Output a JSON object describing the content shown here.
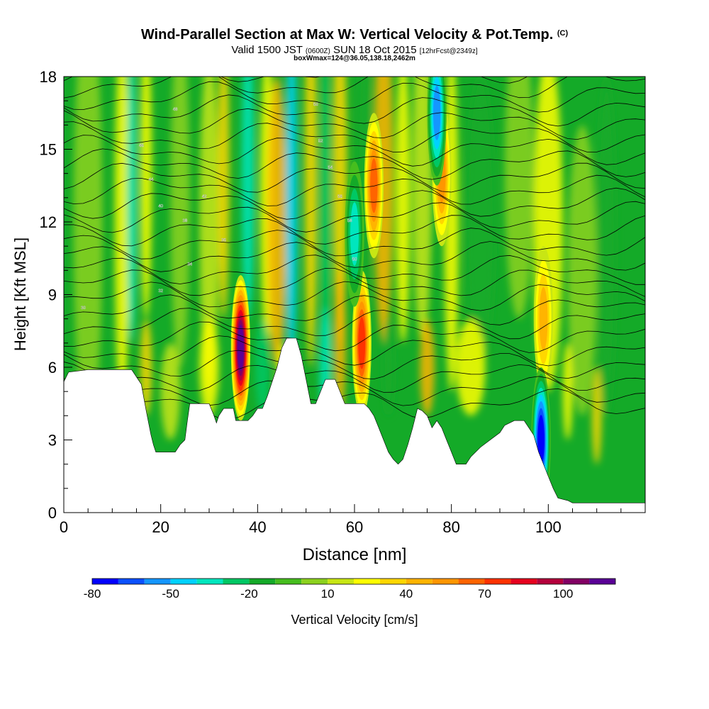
{
  "title": {
    "main": "Wind-Parallel Section at Max W: Vertical Velocity & Pot.Temp.",
    "main_sup": "(C)",
    "valid_prefix": "Valid 1500 JST",
    "valid_utc": "(0600Z)",
    "valid_date": "SUN 18 Oct 2015",
    "forecast": "[12hrFcst@2349z]",
    "box": "boxWmax=124@36.05,138.18,2462m"
  },
  "chart_data": {
    "type": "heatmap",
    "xlabel": "Distance [nm]",
    "ylabel": "Height [Kft MSL]",
    "xlim": [
      0,
      120
    ],
    "ylim": [
      0,
      18
    ],
    "x_ticks": [
      0,
      20,
      40,
      60,
      80,
      100
    ],
    "y_ticks": [
      0,
      3,
      6,
      9,
      12,
      15,
      18
    ],
    "colorbar": {
      "label": "Vertical Velocity [cm/s]",
      "tick_labels": [
        "-80",
        "-50",
        "-20",
        "10",
        "40",
        "70",
        "100"
      ],
      "tick_values": [
        -80,
        -50,
        -20,
        10,
        40,
        70,
        100
      ],
      "levels": [
        -80,
        -70,
        -60,
        -50,
        -40,
        -30,
        -20,
        -10,
        0,
        10,
        20,
        30,
        40,
        50,
        60,
        70,
        80,
        90,
        100,
        110
      ],
      "colors": [
        "#0000ff",
        "#0a50ff",
        "#1496ff",
        "#00d2ff",
        "#00e6be",
        "#00c864",
        "#14aa28",
        "#46be1e",
        "#8cd21e",
        "#c8e614",
        "#ffff00",
        "#ffd700",
        "#ffb400",
        "#ff9600",
        "#ff6400",
        "#ff3200",
        "#e6001e",
        "#b4003c",
        "#820064",
        "#5a0096"
      ]
    },
    "terrain_height_kft": [
      {
        "x": 0,
        "y": 5.4
      },
      {
        "x": 1,
        "y": 5.8
      },
      {
        "x": 5,
        "y": 5.9
      },
      {
        "x": 14,
        "y": 5.9
      },
      {
        "x": 15,
        "y": 5.6
      },
      {
        "x": 16,
        "y": 5.3
      },
      {
        "x": 17,
        "y": 4.2
      },
      {
        "x": 18,
        "y": 3.2
      },
      {
        "x": 18.5,
        "y": 2.8
      },
      {
        "x": 19,
        "y": 2.5
      },
      {
        "x": 23,
        "y": 2.5
      },
      {
        "x": 24,
        "y": 2.8
      },
      {
        "x": 25,
        "y": 3.0
      },
      {
        "x": 25.5,
        "y": 3.8
      },
      {
        "x": 26,
        "y": 4.5
      },
      {
        "x": 30,
        "y": 4.5
      },
      {
        "x": 31,
        "y": 4.0
      },
      {
        "x": 31.5,
        "y": 3.7
      },
      {
        "x": 32,
        "y": 4.0
      },
      {
        "x": 33,
        "y": 4.3
      },
      {
        "x": 35,
        "y": 4.3
      },
      {
        "x": 35.5,
        "y": 3.8
      },
      {
        "x": 37,
        "y": 3.8
      },
      {
        "x": 38,
        "y": 3.8
      },
      {
        "x": 39,
        "y": 4.0
      },
      {
        "x": 40,
        "y": 4.3
      },
      {
        "x": 41,
        "y": 4.3
      },
      {
        "x": 42,
        "y": 4.8
      },
      {
        "x": 43,
        "y": 5.4
      },
      {
        "x": 44,
        "y": 6.0
      },
      {
        "x": 45,
        "y": 6.8
      },
      {
        "x": 46,
        "y": 7.2
      },
      {
        "x": 48,
        "y": 7.2
      },
      {
        "x": 49,
        "y": 6.5
      },
      {
        "x": 50,
        "y": 5.5
      },
      {
        "x": 51,
        "y": 4.5
      },
      {
        "x": 52,
        "y": 4.5
      },
      {
        "x": 53,
        "y": 5.0
      },
      {
        "x": 54,
        "y": 5.5
      },
      {
        "x": 56,
        "y": 5.5
      },
      {
        "x": 57,
        "y": 5.0
      },
      {
        "x": 58,
        "y": 4.5
      },
      {
        "x": 59,
        "y": 4.5
      },
      {
        "x": 62,
        "y": 4.5
      },
      {
        "x": 63,
        "y": 4.3
      },
      {
        "x": 64,
        "y": 4.0
      },
      {
        "x": 65,
        "y": 3.5
      },
      {
        "x": 66,
        "y": 3.0
      },
      {
        "x": 67,
        "y": 2.5
      },
      {
        "x": 68,
        "y": 2.2
      },
      {
        "x": 69,
        "y": 2.0
      },
      {
        "x": 70,
        "y": 2.2
      },
      {
        "x": 71,
        "y": 2.8
      },
      {
        "x": 72,
        "y": 3.5
      },
      {
        "x": 73,
        "y": 4.3
      },
      {
        "x": 74,
        "y": 4.2
      },
      {
        "x": 75,
        "y": 4.0
      },
      {
        "x": 76,
        "y": 3.5
      },
      {
        "x": 77,
        "y": 3.8
      },
      {
        "x": 78,
        "y": 3.5
      },
      {
        "x": 79,
        "y": 3.0
      },
      {
        "x": 80,
        "y": 2.5
      },
      {
        "x": 81,
        "y": 2.0
      },
      {
        "x": 83,
        "y": 2.0
      },
      {
        "x": 84,
        "y": 2.3
      },
      {
        "x": 86,
        "y": 2.7
      },
      {
        "x": 88,
        "y": 3.0
      },
      {
        "x": 90,
        "y": 3.3
      },
      {
        "x": 91,
        "y": 3.6
      },
      {
        "x": 93,
        "y": 3.8
      },
      {
        "x": 95,
        "y": 3.8
      },
      {
        "x": 96,
        "y": 3.5
      },
      {
        "x": 97,
        "y": 3.2
      },
      {
        "x": 98,
        "y": 2.5
      },
      {
        "x": 99,
        "y": 2.0
      },
      {
        "x": 100,
        "y": 1.5
      },
      {
        "x": 101,
        "y": 1.0
      },
      {
        "x": 102,
        "y": 0.6
      },
      {
        "x": 104,
        "y": 0.5
      },
      {
        "x": 105,
        "y": 0.4
      },
      {
        "x": 120,
        "y": 0.4
      }
    ],
    "updraft_cores": [
      {
        "x": 36.5,
        "y": 6.8,
        "w_cms": 110
      },
      {
        "x": 61.5,
        "y": 7.0,
        "w_cms": 70
      },
      {
        "x": 64,
        "y": 13.5,
        "w_cms": 60
      },
      {
        "x": 99,
        "y": 8.0,
        "w_cms": 40
      },
      {
        "x": 78,
        "y": 14.0,
        "w_cms": 50
      }
    ],
    "downdraft_cores": [
      {
        "x": 98.5,
        "y": 3.0,
        "w_cms": -80
      },
      {
        "x": 77,
        "y": 16.5,
        "w_cms": -60
      },
      {
        "x": 60,
        "y": 11.5,
        "w_cms": -40
      }
    ],
    "theta_contour_labels": [
      "30",
      "32",
      "34",
      "36",
      "38",
      "40",
      "42",
      "44",
      "46",
      "48",
      "50",
      "52",
      "54",
      "56",
      "58",
      "60"
    ]
  }
}
